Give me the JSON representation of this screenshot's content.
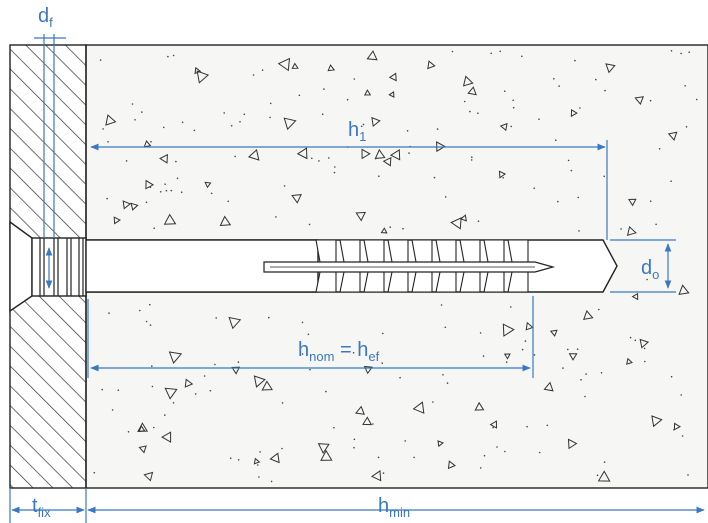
{
  "colors": {
    "dimension": "#3a78c2",
    "outline": "#222222",
    "concrete_fill": "#f6f6f4",
    "hatch": "#333333"
  },
  "labels": {
    "d_f": {
      "main": "d",
      "sub": "f"
    },
    "h_1": {
      "main": "h",
      "sub": "1"
    },
    "d_0": {
      "main": "d",
      "sub": "o"
    },
    "h_nom": {
      "main": "h",
      "sub": "nom"
    },
    "equals": "=",
    "h_ef": {
      "main": "h",
      "sub": "ef"
    },
    "t_fix": {
      "main": "t",
      "sub": "fix"
    },
    "h_min": {
      "main": "h",
      "sub": "min"
    }
  }
}
